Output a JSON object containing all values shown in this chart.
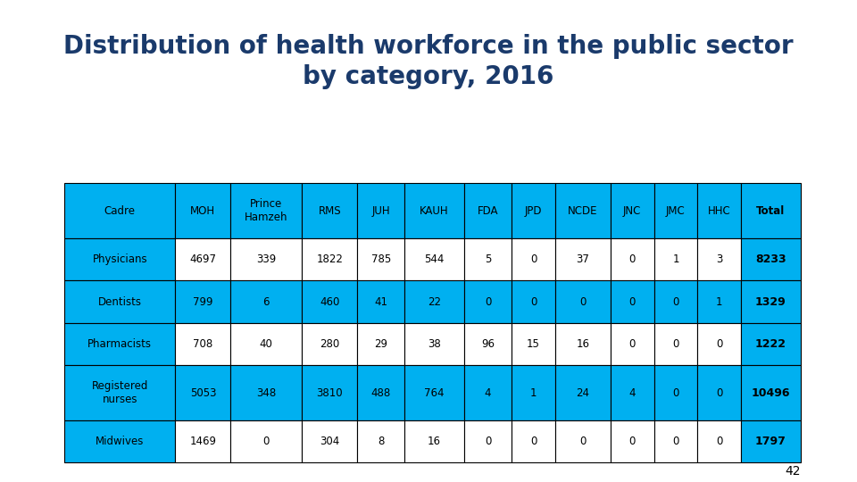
{
  "title": "Distribution of health workforce in the public sector\nby category, 2016",
  "title_fontsize": 20,
  "title_color": "#1a3a6b",
  "title_bold": true,
  "columns": [
    "Cadre",
    "MOH",
    "Prince\nHamzeh",
    "RMS",
    "JUH",
    "KAUH",
    "FDA",
    "JPD",
    "NCDE",
    "JNC",
    "JMC",
    "HHC",
    "Total"
  ],
  "rows": [
    [
      "Physicians",
      "4697",
      "339",
      "1822",
      "785",
      "544",
      "5",
      "0",
      "37",
      "0",
      "1",
      "3",
      "8233"
    ],
    [
      "Dentists",
      "799",
      "6",
      "460",
      "41",
      "22",
      "0",
      "0",
      "0",
      "0",
      "0",
      "1",
      "1329"
    ],
    [
      "Pharmacists",
      "708",
      "40",
      "280",
      "29",
      "38",
      "96",
      "15",
      "16",
      "0",
      "0",
      "0",
      "1222"
    ],
    [
      "Registered\nnurses",
      "5053",
      "348",
      "3810",
      "488",
      "764",
      "4",
      "1",
      "24",
      "4",
      "0",
      "0",
      "10496"
    ],
    [
      "Midwives",
      "1469",
      "0",
      "304",
      "8",
      "16",
      "0",
      "0",
      "0",
      "0",
      "0",
      "0",
      "1797"
    ]
  ],
  "header_bg_color": "#00b0f0",
  "row_bg_colors": [
    "#ffffff",
    "#00b0f0"
  ],
  "cadre_bg_color": "#00b0f0",
  "total_col_color": "#00b0f0",
  "cell_text_color": "#000000",
  "total_text_bold": true,
  "border_color": "#000000",
  "background_color": "#ffffff",
  "page_number": "42",
  "col_widths": [
    1.4,
    0.7,
    0.9,
    0.7,
    0.6,
    0.75,
    0.6,
    0.55,
    0.7,
    0.55,
    0.55,
    0.55,
    0.75
  ]
}
